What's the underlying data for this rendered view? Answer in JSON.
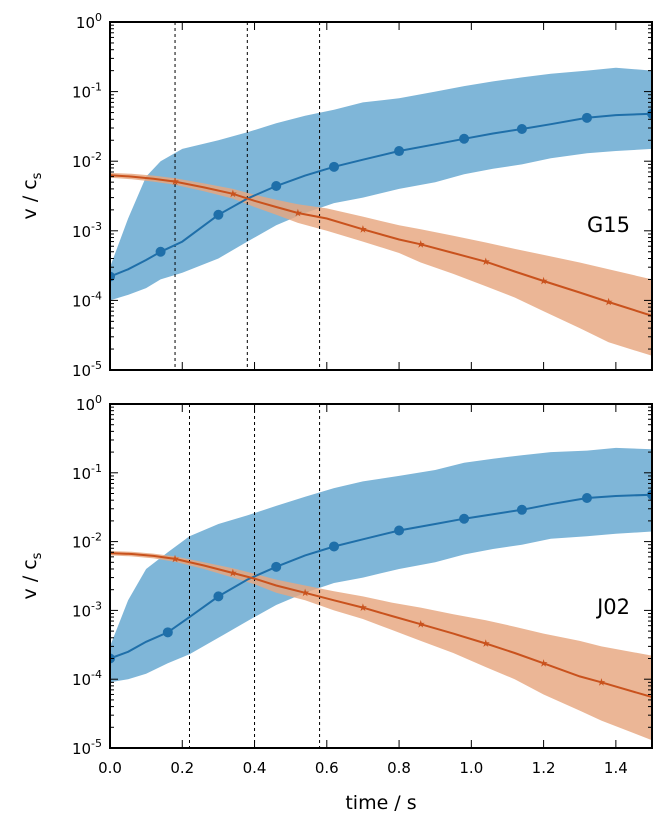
{
  "chart_data": {
    "type": "line",
    "xlabel": "time / s",
    "ylabel_base": "v / c",
    "ylabel_sub": "s",
    "y_scale": "log",
    "ylim": [
      1e-05,
      1
    ],
    "xlim": [
      0,
      1.5
    ],
    "x_ticks": [
      "0.0",
      "0.2",
      "0.4",
      "0.6",
      "0.8",
      "1.0",
      "1.2",
      "1.4"
    ],
    "y_ticks": [
      {
        "value": 1,
        "base": "10",
        "exp": "0"
      },
      {
        "value": 0.1,
        "base": "10",
        "exp": "-1"
      },
      {
        "value": 0.01,
        "base": "10",
        "exp": "-2"
      },
      {
        "value": 0.001,
        "base": "10",
        "exp": "-3"
      },
      {
        "value": 0.0001,
        "base": "10",
        "exp": "-4"
      },
      {
        "value": 1e-05,
        "base": "10",
        "exp": "-5"
      }
    ],
    "colors": {
      "blue_line": "#1f6fa9",
      "blue_band": "#7fb6d8",
      "orange_line": "#c9521d",
      "orange_band": "#e6a67f",
      "overlap": "#8d9ca6"
    },
    "panels": [
      {
        "label": "G15",
        "vlines": [
          0.18,
          0.38,
          0.58
        ],
        "series": [
          {
            "marker": "circle",
            "color": "blue",
            "x": [
              0.0,
              0.05,
              0.1,
              0.14,
              0.2,
              0.3,
              0.38,
              0.46,
              0.54,
              0.62,
              0.7,
              0.8,
              0.9,
              0.98,
              1.06,
              1.14,
              1.22,
              1.32,
              1.4,
              1.5
            ],
            "y": [
              0.00022,
              0.00028,
              0.00038,
              0.0005,
              0.0007,
              0.0017,
              0.0029,
              0.0044,
              0.0062,
              0.0083,
              0.0105,
              0.014,
              0.0175,
              0.021,
              0.025,
              0.029,
              0.034,
              0.042,
              0.046,
              0.048
            ],
            "marker_x": [
              0.0,
              0.14,
              0.3,
              0.46,
              0.62,
              0.8,
              0.98,
              1.14,
              1.32,
              1.5
            ],
            "band_lo": [
              0.0001,
              0.00012,
              0.00015,
              0.0002,
              0.00025,
              0.0004,
              0.0007,
              0.0012,
              0.0018,
              0.0025,
              0.003,
              0.004,
              0.005,
              0.0065,
              0.0078,
              0.009,
              0.011,
              0.013,
              0.014,
              0.015
            ],
            "band_hi": [
              0.0003,
              0.0015,
              0.006,
              0.01,
              0.015,
              0.02,
              0.026,
              0.035,
              0.045,
              0.055,
              0.07,
              0.08,
              0.1,
              0.12,
              0.14,
              0.16,
              0.18,
              0.2,
              0.22,
              0.2
            ]
          },
          {
            "marker": "star",
            "color": "orange",
            "x": [
              0.0,
              0.06,
              0.12,
              0.18,
              0.26,
              0.34,
              0.4,
              0.46,
              0.52,
              0.6,
              0.7,
              0.8,
              0.86,
              0.95,
              1.04,
              1.12,
              1.2,
              1.3,
              1.38,
              1.5
            ],
            "y": [
              0.0063,
              0.006,
              0.0056,
              0.0051,
              0.0042,
              0.0034,
              0.0027,
              0.0022,
              0.0018,
              0.0015,
              0.00105,
              0.00075,
              0.00064,
              0.00048,
              0.00036,
              0.00026,
              0.00019,
              0.00013,
              9.5e-05,
              6e-05
            ],
            "marker_x": [
              0.18,
              0.34,
              0.52,
              0.7,
              0.86,
              1.04,
              1.2,
              1.38
            ],
            "band_lo": [
              0.0058,
              0.0055,
              0.0051,
              0.0046,
              0.0037,
              0.0029,
              0.0022,
              0.0017,
              0.0013,
              0.001,
              0.0007,
              0.00048,
              0.00035,
              0.00024,
              0.00016,
              0.00011,
              7e-05,
              4e-05,
              2.5e-05,
              1.6e-05
            ],
            "band_hi": [
              0.0068,
              0.0066,
              0.0062,
              0.0057,
              0.0048,
              0.004,
              0.0033,
              0.0028,
              0.0024,
              0.0021,
              0.0016,
              0.0012,
              0.00105,
              0.00085,
              0.00068,
              0.00055,
              0.00045,
              0.00035,
              0.00028,
              0.0002
            ]
          }
        ]
      },
      {
        "label": "J02",
        "vlines": [
          0.22,
          0.4,
          0.58
        ],
        "series": [
          {
            "marker": "circle",
            "color": "blue",
            "x": [
              0.0,
              0.05,
              0.1,
              0.16,
              0.22,
              0.3,
              0.38,
              0.46,
              0.54,
              0.62,
              0.7,
              0.8,
              0.9,
              0.98,
              1.06,
              1.14,
              1.22,
              1.32,
              1.4,
              1.5
            ],
            "y": [
              0.0002,
              0.00025,
              0.00035,
              0.00048,
              0.0008,
              0.0016,
              0.0028,
              0.0043,
              0.0063,
              0.0085,
              0.0108,
              0.0145,
              0.018,
              0.0215,
              0.025,
              0.029,
              0.035,
              0.043,
              0.046,
              0.048
            ],
            "marker_x": [
              0.0,
              0.16,
              0.3,
              0.46,
              0.62,
              0.8,
              0.98,
              1.14,
              1.32,
              1.5
            ],
            "band_lo": [
              9e-05,
              0.0001,
              0.00012,
              0.00017,
              0.00023,
              0.0004,
              0.0007,
              0.0012,
              0.0018,
              0.0025,
              0.003,
              0.004,
              0.005,
              0.0065,
              0.0078,
              0.009,
              0.011,
              0.012,
              0.013,
              0.014
            ],
            "band_hi": [
              0.0003,
              0.0014,
              0.004,
              0.007,
              0.012,
              0.018,
              0.024,
              0.033,
              0.045,
              0.06,
              0.075,
              0.09,
              0.11,
              0.14,
              0.16,
              0.18,
              0.2,
              0.21,
              0.23,
              0.22
            ]
          },
          {
            "marker": "star",
            "color": "orange",
            "x": [
              0.0,
              0.06,
              0.12,
              0.18,
              0.26,
              0.34,
              0.4,
              0.46,
              0.54,
              0.62,
              0.7,
              0.78,
              0.86,
              0.95,
              1.04,
              1.12,
              1.2,
              1.3,
              1.36,
              1.5
            ],
            "y": [
              0.0068,
              0.0066,
              0.0062,
              0.0056,
              0.0045,
              0.0035,
              0.0029,
              0.0023,
              0.0018,
              0.0014,
              0.0011,
              0.00083,
              0.00063,
              0.00046,
              0.00033,
              0.00024,
              0.00017,
              0.00011,
              9e-05,
              5.5e-05
            ],
            "marker_x": [
              0.18,
              0.34,
              0.54,
              0.7,
              0.86,
              1.04,
              1.2,
              1.36
            ],
            "band_lo": [
              0.0063,
              0.0061,
              0.0057,
              0.0051,
              0.004,
              0.003,
              0.0024,
              0.0018,
              0.0014,
              0.001,
              0.00075,
              0.00052,
              0.00036,
              0.00024,
              0.00015,
              0.0001,
              6e-05,
              3.5e-05,
              2.5e-05,
              1.3e-05
            ],
            "band_hi": [
              0.0073,
              0.0071,
              0.0067,
              0.0061,
              0.005,
              0.0041,
              0.0034,
              0.0028,
              0.0023,
              0.0019,
              0.0016,
              0.0013,
              0.0011,
              0.00088,
              0.00072,
              0.00058,
              0.00046,
              0.00036,
              0.0003,
              0.00022
            ]
          }
        ]
      }
    ]
  }
}
